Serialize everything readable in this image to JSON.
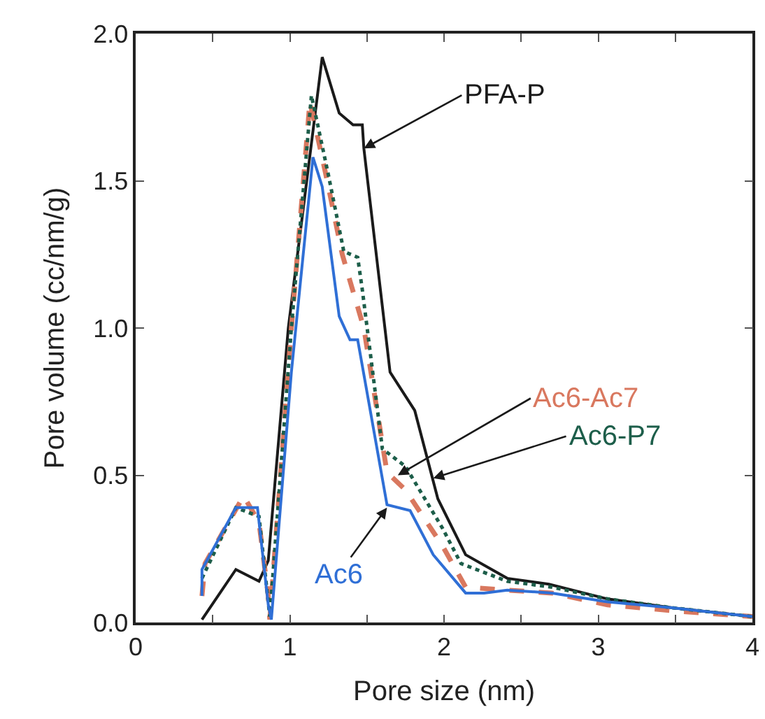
{
  "chart_data": {
    "type": "line",
    "xlabel": "Pore size (nm)",
    "ylabel": "Pore volume (cc/nm/g)",
    "xlim": [
      0,
      4
    ],
    "ylim": [
      0,
      2.0
    ],
    "xticks": [
      0,
      {
        "value": 0.5,
        "label": null
      },
      1,
      {
        "value": 1.5,
        "label": null
      },
      2,
      {
        "value": 2.5,
        "label": null
      },
      3,
      {
        "value": 3.5,
        "label": null
      },
      4
    ],
    "yticks": [
      {
        "value": 0,
        "label": "0.0"
      },
      0.5,
      {
        "value": 1,
        "label": "1.0"
      },
      1.5,
      {
        "value": 2,
        "label": "2.0"
      }
    ],
    "marker": "none",
    "series": [
      {
        "color": "#1a1a1a",
        "line_style": "solid",
        "x": [
          0.43,
          0.65,
          0.8,
          0.86,
          0.99,
          1.21,
          1.32,
          1.41,
          1.47,
          1.48,
          1.65,
          1.81,
          1.96,
          2.14,
          2.41,
          2.68,
          3.06,
          3.48,
          4.0
        ],
        "values": [
          0.01,
          0.18,
          0.14,
          0.21,
          1.0,
          1.92,
          1.73,
          1.69,
          1.69,
          1.61,
          0.85,
          0.72,
          0.42,
          0.23,
          0.15,
          0.13,
          0.08,
          0.05,
          0.02
        ]
      },
      {
        "color": "#d9785f",
        "line_style": "dashed",
        "x": [
          0.43,
          0.45,
          0.7,
          0.8,
          0.86,
          0.87,
          1.01,
          1.13,
          1.23,
          1.34,
          1.39,
          1.48,
          1.63,
          1.75,
          1.99,
          2.14,
          2.41,
          2.7,
          3.06,
          3.48,
          4.0
        ],
        "values": [
          0.09,
          0.2,
          0.43,
          0.34,
          0.09,
          0.01,
          1.0,
          1.77,
          1.53,
          1.25,
          1.16,
          1.0,
          0.51,
          0.45,
          0.26,
          0.12,
          0.11,
          0.1,
          0.06,
          0.04,
          0.02
        ]
      },
      {
        "color": "#1d5e4a",
        "line_style": "dotted",
        "x": [
          0.43,
          0.65,
          0.8,
          0.87,
          1.01,
          1.14,
          1.25,
          1.35,
          1.44,
          1.47,
          1.6,
          1.75,
          1.99,
          2.11,
          2.41,
          2.7,
          3.06,
          3.48,
          4.0
        ],
        "values": [
          0.15,
          0.39,
          0.36,
          0.02,
          1.0,
          1.79,
          1.52,
          1.26,
          1.24,
          1.13,
          0.59,
          0.53,
          0.32,
          0.2,
          0.14,
          0.12,
          0.08,
          0.05,
          0.02
        ]
      },
      {
        "color": "#2f6fd6",
        "line_style": "solid",
        "x": [
          0.43,
          0.43,
          0.65,
          0.79,
          0.86,
          0.88,
          1.01,
          1.15,
          1.21,
          1.32,
          1.39,
          1.44,
          1.63,
          1.78,
          1.93,
          2.14,
          2.26,
          2.41,
          2.7,
          3.06,
          3.48,
          4.0
        ],
        "values": [
          0.09,
          0.18,
          0.39,
          0.39,
          0.06,
          0.01,
          0.85,
          1.58,
          1.48,
          1.04,
          0.96,
          0.96,
          0.4,
          0.38,
          0.23,
          0.1,
          0.1,
          0.11,
          0.1,
          0.07,
          0.05,
          0.02
        ]
      }
    ],
    "annotations": [
      {
        "text": "PFA-P",
        "x": 1.48,
        "y": 1.61
      },
      {
        "text": "Ac6-Ac7",
        "x": 1.7,
        "y": 0.5
      },
      {
        "text": "Ac6-P7",
        "x": 1.93,
        "y": 0.49
      },
      {
        "text": "Ac6",
        "x": 1.63,
        "y": 0.39
      }
    ]
  }
}
